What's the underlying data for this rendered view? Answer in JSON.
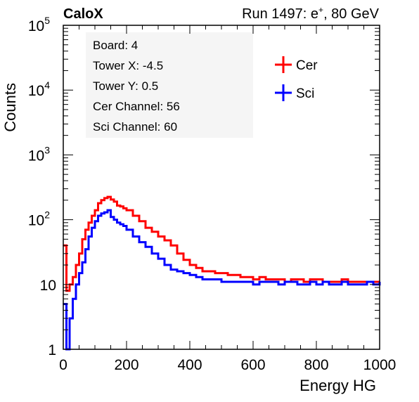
{
  "header": {
    "experiment": "CaloX",
    "run_label": "Run 1497: e",
    "run_sup": "+",
    "run_energy": ", 80 GeV"
  },
  "info_box": {
    "lines": [
      "Board: 4",
      "Tower X: -4.5",
      "Tower Y: 0.5",
      "Cer Channel: 56",
      "Sci Channel: 60"
    ]
  },
  "chart_data": {
    "type": "line",
    "title": "",
    "xlabel": "Energy HG",
    "ylabel": "Counts",
    "xlim": [
      0,
      1000
    ],
    "ylim": [
      1,
      100000
    ],
    "y_scale": "log",
    "grid": false,
    "legend_position": "top-right",
    "x_ticks": [
      {
        "value": 0,
        "label": "0"
      },
      {
        "value": 200,
        "label": "200"
      },
      {
        "value": 400,
        "label": "400"
      },
      {
        "value": 600,
        "label": "600"
      },
      {
        "value": 800,
        "label": "800"
      },
      {
        "value": 1000,
        "label": "1000"
      }
    ],
    "y_ticks": [
      {
        "value": 1,
        "base": "1",
        "exp": ""
      },
      {
        "value": 10,
        "base": "10",
        "exp": ""
      },
      {
        "value": 100,
        "base": "10",
        "exp": "2"
      },
      {
        "value": 1000,
        "base": "10",
        "exp": "3"
      },
      {
        "value": 10000,
        "base": "10",
        "exp": "4"
      },
      {
        "value": 100000,
        "base": "10",
        "exp": "5"
      }
    ],
    "x": [
      0,
      10,
      20,
      30,
      40,
      50,
      60,
      70,
      80,
      90,
      100,
      110,
      120,
      130,
      140,
      150,
      160,
      170,
      180,
      190,
      200,
      220,
      240,
      260,
      280,
      300,
      320,
      340,
      360,
      380,
      400,
      420,
      440,
      460,
      480,
      500,
      520,
      540,
      560,
      580,
      600,
      620,
      640,
      660,
      680,
      700,
      720,
      740,
      760,
      780,
      800,
      820,
      840,
      860,
      880,
      900,
      920,
      940,
      960,
      980,
      1000
    ],
    "series": [
      {
        "name": "Cer",
        "color": "#ff0000",
        "values": [
          40,
          8,
          10,
          13,
          20,
          30,
          50,
          70,
          90,
          115,
          140,
          180,
          200,
          215,
          225,
          205,
          190,
          165,
          160,
          150,
          140,
          115,
          95,
          75,
          65,
          55,
          48,
          40,
          30,
          24,
          20,
          18,
          16,
          16,
          15,
          15,
          14,
          14,
          13,
          13,
          12,
          13,
          12,
          12,
          12,
          11,
          12,
          12,
          11,
          12,
          12,
          11,
          11,
          11,
          12,
          11,
          11,
          11,
          11,
          11,
          11
        ]
      },
      {
        "name": "Sci",
        "color": "#0000ff",
        "values": [
          5,
          1,
          3,
          6,
          10,
          15,
          22,
          35,
          55,
          75,
          95,
          115,
          125,
          130,
          140,
          110,
          100,
          90,
          85,
          80,
          70,
          55,
          45,
          38,
          30,
          25,
          20,
          17,
          16,
          15,
          14,
          13,
          12,
          12,
          12,
          11,
          11,
          11,
          11,
          11,
          10,
          11,
          11,
          11,
          10,
          11,
          11,
          10,
          10,
          11,
          10,
          11,
          10,
          10,
          11,
          10,
          10,
          10,
          11,
          10,
          11
        ]
      }
    ]
  }
}
